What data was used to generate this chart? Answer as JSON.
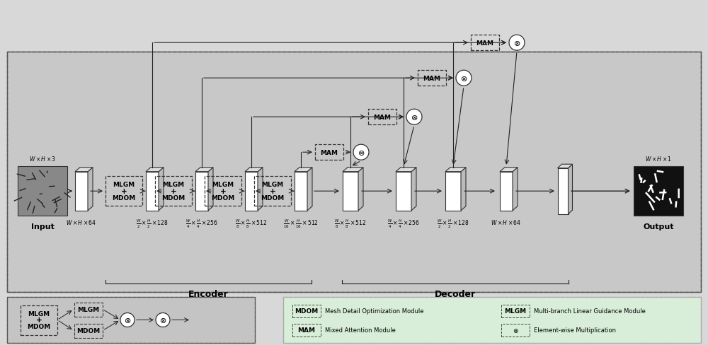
{
  "bg_color": "#d8d8d8",
  "main_bg": "#cccccc",
  "fig_w": 10.0,
  "fig_h": 4.89,
  "title_fontsize": 9,
  "label_fontsize": 8,
  "small_fontsize": 6.5,
  "tiny_fontsize": 5.5,
  "encoder_label": "Encoder",
  "decoder_label": "Decoder",
  "input_label": "Input",
  "output_label": "Output",
  "enc_labels": [
    "$W\\times H\\times 64$",
    "$\\frac{W}{2}\\times\\frac{H}{2}\\times 128$",
    "$\\frac{W}{4}\\times\\frac{H}{4}\\times 256$",
    "$\\frac{W}{8}\\times\\frac{H}{8}\\times 512$",
    "$\\frac{W}{16}\\times\\frac{H}{16}\\times 512$"
  ],
  "dec_labels": [
    "$\\frac{W}{8}\\times\\frac{H}{8}\\times 512$",
    "$\\frac{W}{4}\\times\\frac{H}{4}\\times 256$",
    "$\\frac{W}{2}\\times\\frac{H}{2}\\times 128$",
    "$W\\times H\\times 64$"
  ],
  "input_dim": "$W\\times H\\times 3$",
  "output_dim": "$W\\times H\\times 1$"
}
